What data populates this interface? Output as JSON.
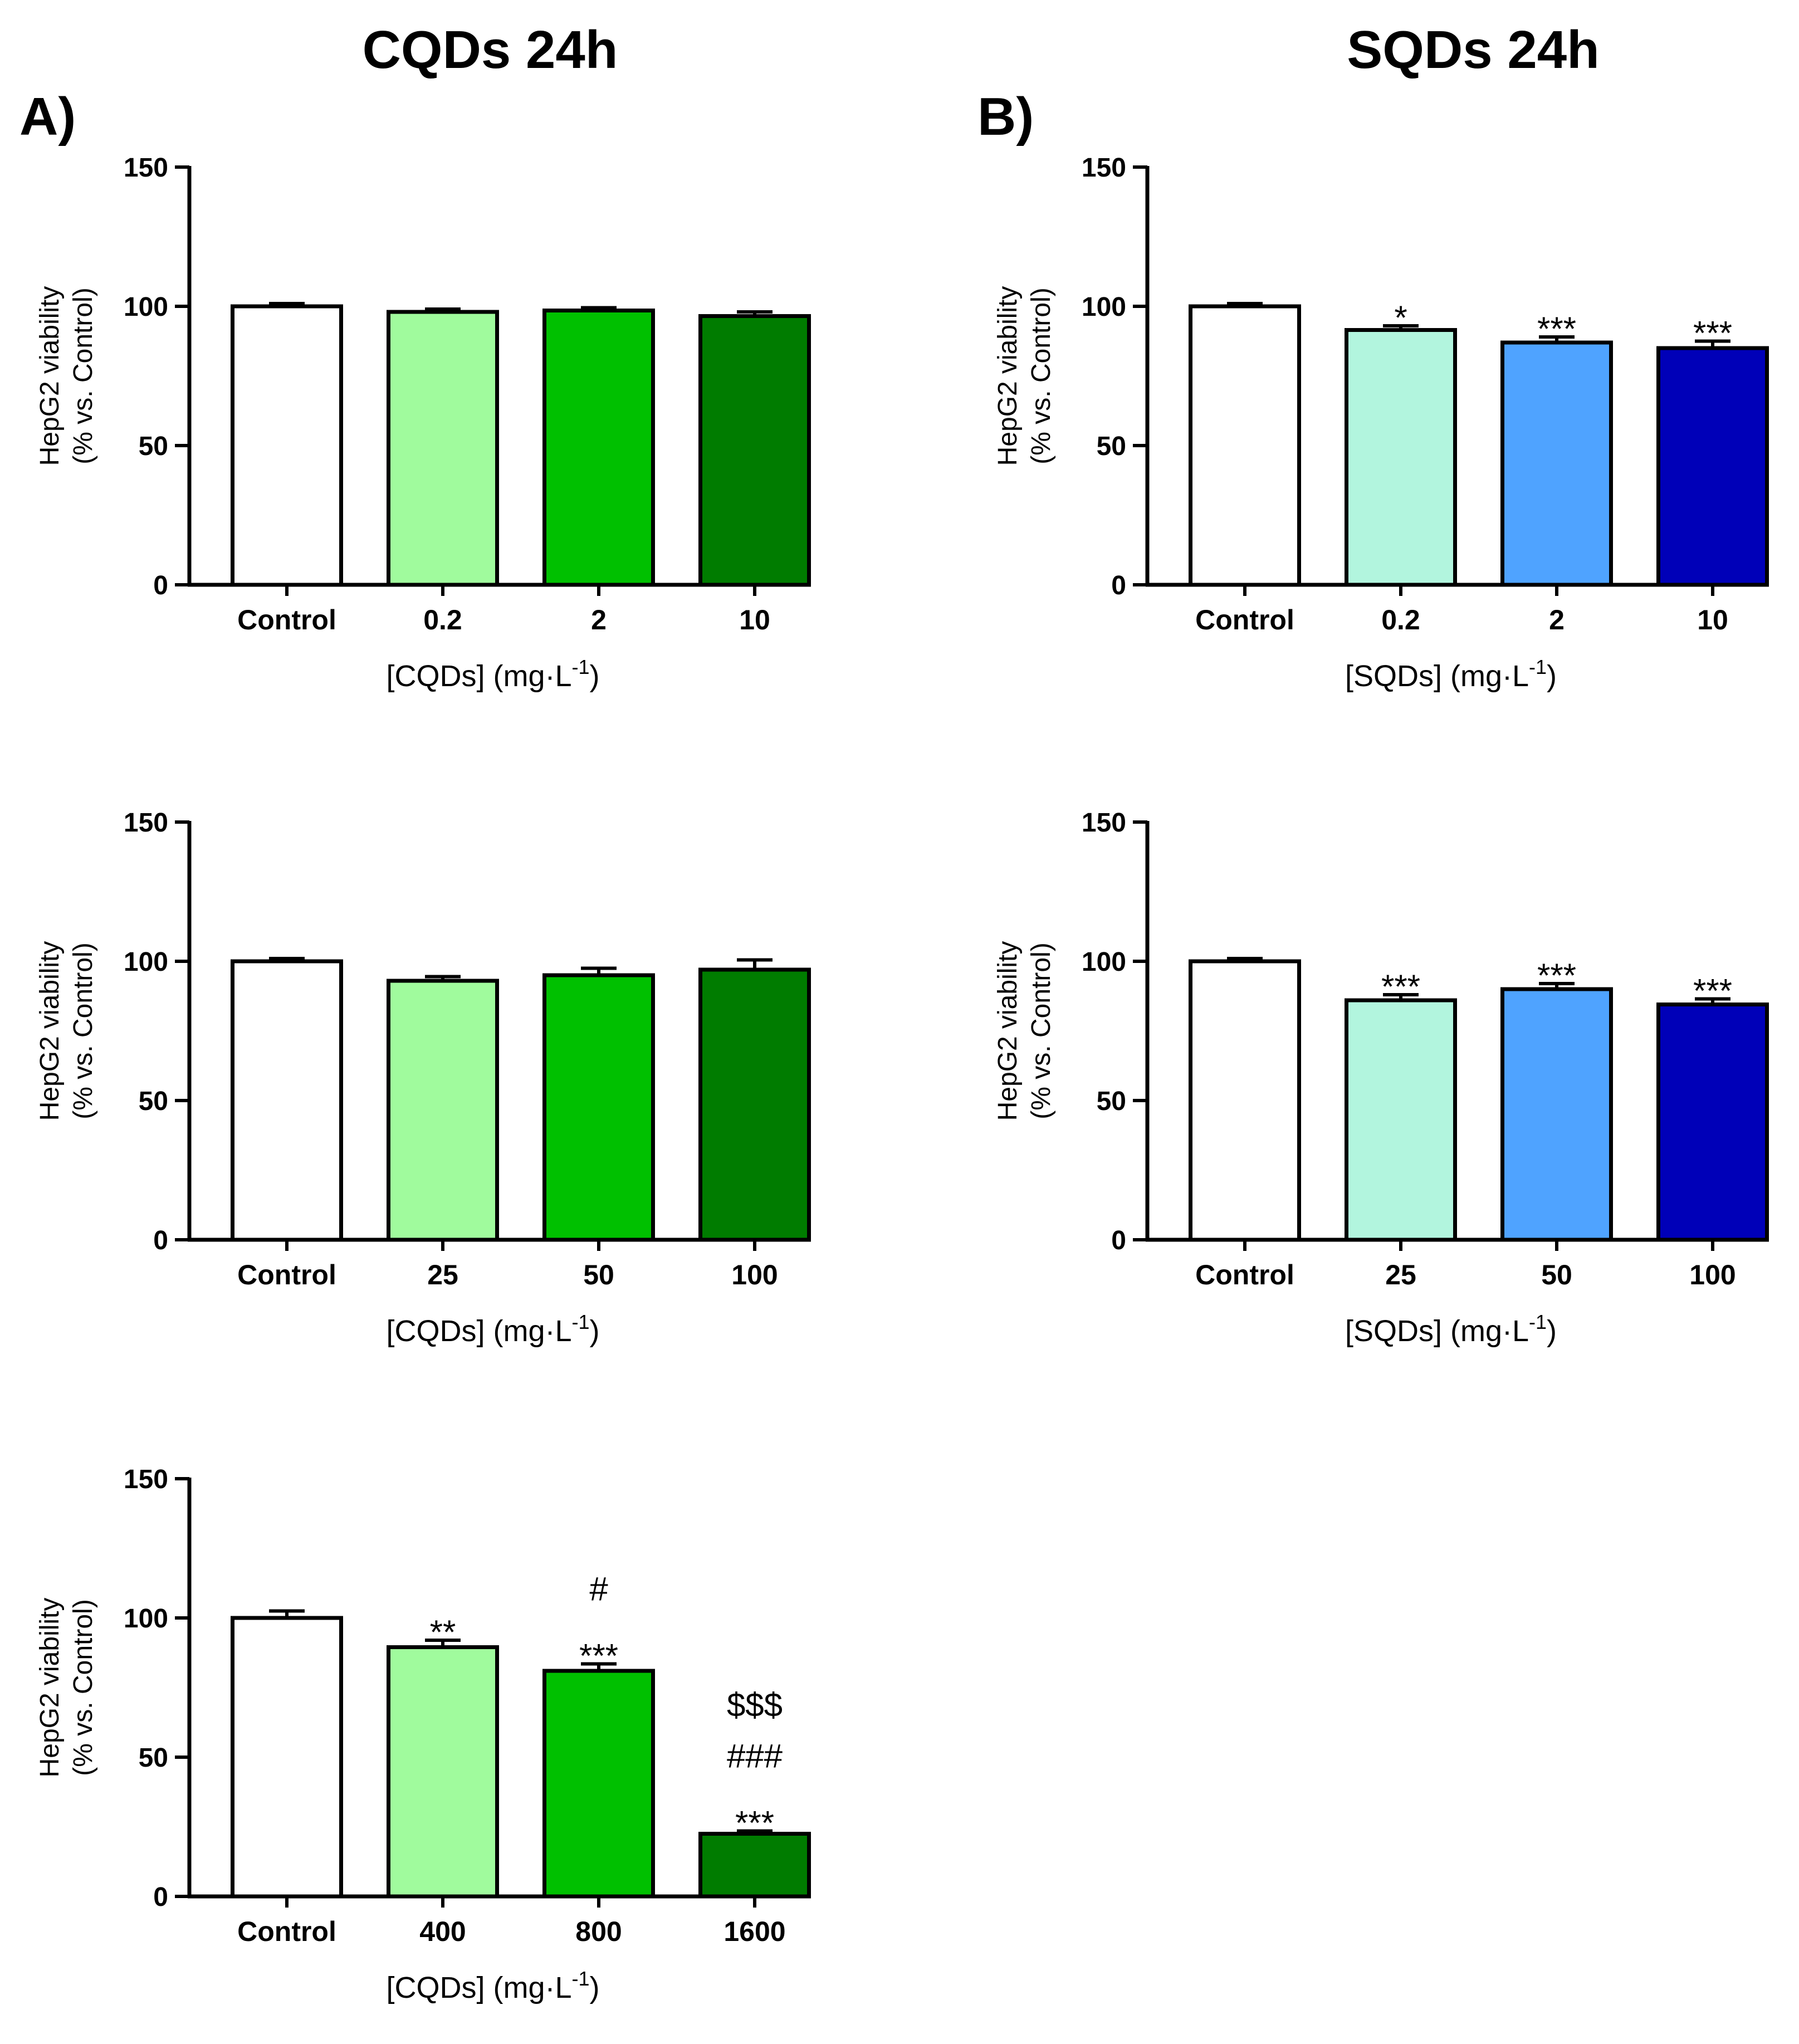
{
  "columns": [
    {
      "label": "A)",
      "title": "CQDs 24h"
    },
    {
      "label": "B)",
      "title": "SQDs 24h"
    }
  ],
  "ylabel_line1": "HepG2 viability",
  "ylabel_line2": "(% vs. Control)",
  "chart_data": [
    {
      "type": "bar",
      "column": 0,
      "row": 0,
      "title": "CQDs 24h",
      "categories": [
        "Control",
        "0.2",
        "2",
        "10"
      ],
      "values": [
        100,
        98,
        98.5,
        96.5
      ],
      "errors": [
        1,
        1,
        1,
        1.5
      ],
      "colors": [
        "#ffffff",
        "#a0fb9d",
        "#00c000",
        "#007c00"
      ],
      "annotations": [
        [],
        [],
        [],
        []
      ],
      "xlabel": "[CQDs] (mg·L",
      "xlabel_sup": "-1",
      "xlabel_end": ")",
      "ylabel": "HepG2 viability (% vs. Control)",
      "ylim": [
        0,
        150
      ],
      "yticks": [
        0,
        50,
        100,
        150
      ]
    },
    {
      "type": "bar",
      "column": 1,
      "row": 0,
      "title": "SQDs 24h",
      "categories": [
        "Control",
        "0.2",
        "2",
        "10"
      ],
      "values": [
        100,
        91.5,
        87,
        85
      ],
      "errors": [
        1,
        1.5,
        2,
        2.5
      ],
      "colors": [
        "#ffffff",
        "#b2f5de",
        "#4fa3ff",
        "#0000b8"
      ],
      "annotations": [
        [],
        [
          "*"
        ],
        [
          "***"
        ],
        [
          "***"
        ]
      ],
      "xlabel": "[SQDs] (mg·L",
      "xlabel_sup": "-1",
      "xlabel_end": ")",
      "ylabel": "HepG2 viability (% vs. Control)",
      "ylim": [
        0,
        150
      ],
      "yticks": [
        0,
        50,
        100,
        150
      ]
    },
    {
      "type": "bar",
      "column": 0,
      "row": 1,
      "title": "CQDs 24h",
      "categories": [
        "Control",
        "25",
        "50",
        "100"
      ],
      "values": [
        100,
        93,
        95,
        97
      ],
      "errors": [
        1,
        1.5,
        2.5,
        3.5
      ],
      "colors": [
        "#ffffff",
        "#a0fb9d",
        "#00c000",
        "#007c00"
      ],
      "annotations": [
        [],
        [],
        [],
        []
      ],
      "xlabel": "[CQDs] (mg·L",
      "xlabel_sup": "-1",
      "xlabel_end": ")",
      "ylabel": "HepG2 viability (% vs. Control)",
      "ylim": [
        0,
        150
      ],
      "yticks": [
        0,
        50,
        100,
        150
      ]
    },
    {
      "type": "bar",
      "column": 1,
      "row": 1,
      "title": "SQDs 24h",
      "categories": [
        "Control",
        "25",
        "50",
        "100"
      ],
      "values": [
        100,
        86,
        90,
        84.5
      ],
      "errors": [
        1,
        2,
        2,
        2
      ],
      "colors": [
        "#ffffff",
        "#b2f5de",
        "#4fa3ff",
        "#0000b8"
      ],
      "annotations": [
        [],
        [
          "***"
        ],
        [
          "***"
        ],
        [
          "***"
        ]
      ],
      "xlabel": "[SQDs] (mg·L",
      "xlabel_sup": "-1",
      "xlabel_end": ")",
      "ylabel": "HepG2 viability (% vs. Control)",
      "ylim": [
        0,
        150
      ],
      "yticks": [
        0,
        50,
        100,
        150
      ]
    },
    {
      "type": "bar",
      "column": 0,
      "row": 2,
      "title": "CQDs 24h",
      "categories": [
        "Control",
        "400",
        "800",
        "1600"
      ],
      "values": [
        100,
        89.5,
        81,
        22.5
      ],
      "errors": [
        2.5,
        2.5,
        2.5,
        1
      ],
      "colors": [
        "#ffffff",
        "#a0fb9d",
        "#00c000",
        "#007c00"
      ],
      "annotations": [
        [],
        [
          "**"
        ],
        [
          "***",
          "#"
        ],
        [
          "***",
          "###",
          "$$$"
        ]
      ],
      "xlabel": "[CQDs] (mg·L",
      "xlabel_sup": "-1",
      "xlabel_end": ")",
      "ylabel": "HepG2 viability (% vs. Control)",
      "ylim": [
        0,
        150
      ],
      "yticks": [
        0,
        50,
        100,
        150
      ]
    }
  ]
}
